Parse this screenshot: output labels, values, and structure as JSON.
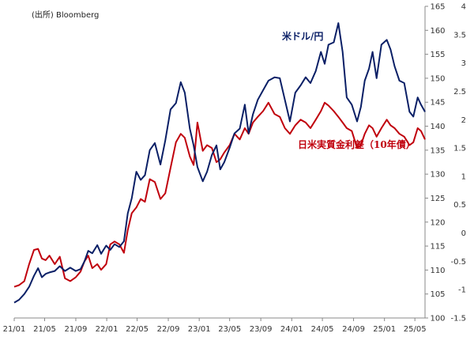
{
  "chart_data": {
    "type": "line",
    "source_note": "(出所) Bloomberg",
    "x_ticks": [
      "21/01",
      "21/05",
      "21/09",
      "22/01",
      "22/05",
      "22/09",
      "23/01",
      "23/05",
      "23/09",
      "24/01",
      "24/05",
      "24/09",
      "25/01",
      "25/05"
    ],
    "y_left": {
      "range": [
        100,
        165
      ],
      "ticks": [
        "100",
        "105",
        "110",
        "115",
        "120",
        "125",
        "130",
        "135",
        "140",
        "145",
        "150",
        "155",
        "160",
        "165"
      ]
    },
    "y_right": {
      "range": [
        -1.5,
        4
      ],
      "ticks": [
        "-1.5",
        "-1",
        "-0.5",
        "0",
        "0.5",
        "1",
        "1.5",
        "2",
        "2.5",
        "3",
        "3.5",
        "4"
      ]
    },
    "series": [
      {
        "name": "米ドル/円",
        "axis": "left",
        "color": "#0a1f66",
        "points": [
          [
            "2021-01-01",
            103.2
          ],
          [
            "2021-01-20",
            103.8
          ],
          [
            "2021-02-10",
            105.0
          ],
          [
            "2021-03-01",
            106.5
          ],
          [
            "2021-03-20",
            108.8
          ],
          [
            "2021-04-05",
            110.4
          ],
          [
            "2021-04-20",
            108.5
          ],
          [
            "2021-05-05",
            109.2
          ],
          [
            "2021-05-20",
            109.5
          ],
          [
            "2021-06-10",
            109.8
          ],
          [
            "2021-06-30",
            110.8
          ],
          [
            "2021-07-20",
            109.8
          ],
          [
            "2021-08-10",
            110.5
          ],
          [
            "2021-09-01",
            109.8
          ],
          [
            "2021-09-20",
            110.2
          ],
          [
            "2021-10-05",
            111.8
          ],
          [
            "2021-10-20",
            114.0
          ],
          [
            "2021-11-05",
            113.5
          ],
          [
            "2021-11-25",
            115.2
          ],
          [
            "2021-12-10",
            113.4
          ],
          [
            "2021-12-30",
            115.1
          ],
          [
            "2022-01-15",
            114.2
          ],
          [
            "2022-02-01",
            115.4
          ],
          [
            "2022-02-20",
            114.8
          ],
          [
            "2022-03-10",
            116.0
          ],
          [
            "2022-03-25",
            121.8
          ],
          [
            "2022-04-10",
            125.0
          ],
          [
            "2022-04-28",
            130.5
          ],
          [
            "2022-05-15",
            128.8
          ],
          [
            "2022-06-01",
            129.8
          ],
          [
            "2022-06-20",
            135.0
          ],
          [
            "2022-07-10",
            136.5
          ],
          [
            "2022-08-01",
            132.0
          ],
          [
            "2022-08-20",
            137.0
          ],
          [
            "2022-09-10",
            143.5
          ],
          [
            "2022-10-01",
            144.8
          ],
          [
            "2022-10-20",
            149.2
          ],
          [
            "2022-11-05",
            147.0
          ],
          [
            "2022-11-25",
            139.5
          ],
          [
            "2022-12-10",
            136.0
          ],
          [
            "2022-12-25",
            131.5
          ],
          [
            "2023-01-15",
            128.5
          ],
          [
            "2023-02-01",
            130.5
          ],
          [
            "2023-02-20",
            134.0
          ],
          [
            "2023-03-10",
            136.0
          ],
          [
            "2023-03-25",
            131.0
          ],
          [
            "2023-04-10",
            132.5
          ],
          [
            "2023-05-01",
            135.5
          ],
          [
            "2023-05-20",
            138.5
          ],
          [
            "2023-06-10",
            139.5
          ],
          [
            "2023-06-30",
            144.5
          ],
          [
            "2023-07-15",
            138.5
          ],
          [
            "2023-08-01",
            142.5
          ],
          [
            "2023-08-20",
            145.5
          ],
          [
            "2023-09-10",
            147.5
          ],
          [
            "2023-10-01",
            149.5
          ],
          [
            "2023-10-25",
            150.2
          ],
          [
            "2023-11-15",
            150.0
          ],
          [
            "2023-12-05",
            145.5
          ],
          [
            "2023-12-25",
            141.0
          ],
          [
            "2024-01-15",
            147.0
          ],
          [
            "2024-02-05",
            148.5
          ],
          [
            "2024-02-25",
            150.2
          ],
          [
            "2024-03-15",
            149.0
          ],
          [
            "2024-04-05",
            151.5
          ],
          [
            "2024-04-25",
            155.5
          ],
          [
            "2024-05-10",
            153.0
          ],
          [
            "2024-05-25",
            157.0
          ],
          [
            "2024-06-15",
            157.5
          ],
          [
            "2024-07-03",
            161.5
          ],
          [
            "2024-07-20",
            155.5
          ],
          [
            "2024-08-05",
            146.0
          ],
          [
            "2024-08-25",
            144.5
          ],
          [
            "2024-09-15",
            141.0
          ],
          [
            "2024-09-30",
            144.0
          ],
          [
            "2024-10-15",
            149.5
          ],
          [
            "2024-11-01",
            152.0
          ],
          [
            "2024-11-15",
            155.5
          ],
          [
            "2024-12-01",
            150.0
          ],
          [
            "2024-12-20",
            157.0
          ],
          [
            "2025-01-10",
            158.0
          ],
          [
            "2025-01-25",
            156.0
          ],
          [
            "2025-02-10",
            152.5
          ],
          [
            "2025-03-01",
            149.5
          ],
          [
            "2025-03-20",
            149.0
          ],
          [
            "2025-04-10",
            143.0
          ],
          [
            "2025-04-25",
            142.0
          ],
          [
            "2025-05-12",
            146.0
          ],
          [
            "2025-05-25",
            144.5
          ],
          [
            "2025-06-10",
            143.0
          ]
        ]
      },
      {
        "name": "日米実質金利差（10年債）",
        "axis": "right",
        "color": "#c0000c",
        "points": [
          [
            "2021-01-01",
            -0.95
          ],
          [
            "2021-01-20",
            -0.92
          ],
          [
            "2021-02-10",
            -0.85
          ],
          [
            "2021-03-01",
            -0.55
          ],
          [
            "2021-03-20",
            -0.3
          ],
          [
            "2021-04-05",
            -0.28
          ],
          [
            "2021-04-20",
            -0.45
          ],
          [
            "2021-05-05",
            -0.48
          ],
          [
            "2021-05-20",
            -0.4
          ],
          [
            "2021-06-10",
            -0.55
          ],
          [
            "2021-06-30",
            -0.42
          ],
          [
            "2021-07-20",
            -0.8
          ],
          [
            "2021-08-10",
            -0.85
          ],
          [
            "2021-09-01",
            -0.78
          ],
          [
            "2021-09-20",
            -0.68
          ],
          [
            "2021-10-05",
            -0.5
          ],
          [
            "2021-10-20",
            -0.4
          ],
          [
            "2021-11-05",
            -0.62
          ],
          [
            "2021-11-25",
            -0.55
          ],
          [
            "2021-12-10",
            -0.65
          ],
          [
            "2021-12-30",
            -0.55
          ],
          [
            "2022-01-15",
            -0.2
          ],
          [
            "2022-02-01",
            -0.15
          ],
          [
            "2022-02-20",
            -0.2
          ],
          [
            "2022-03-10",
            -0.35
          ],
          [
            "2022-03-25",
            0.05
          ],
          [
            "2022-04-10",
            0.35
          ],
          [
            "2022-04-28",
            0.45
          ],
          [
            "2022-05-15",
            0.6
          ],
          [
            "2022-06-01",
            0.55
          ],
          [
            "2022-06-20",
            0.95
          ],
          [
            "2022-07-10",
            0.9
          ],
          [
            "2022-08-01",
            0.6
          ],
          [
            "2022-08-20",
            0.7
          ],
          [
            "2022-09-10",
            1.15
          ],
          [
            "2022-10-01",
            1.6
          ],
          [
            "2022-10-20",
            1.75
          ],
          [
            "2022-11-05",
            1.68
          ],
          [
            "2022-11-25",
            1.35
          ],
          [
            "2022-12-10",
            1.2
          ],
          [
            "2022-12-25",
            1.95
          ],
          [
            "2023-01-15",
            1.45
          ],
          [
            "2023-02-01",
            1.55
          ],
          [
            "2023-02-20",
            1.5
          ],
          [
            "2023-03-10",
            1.25
          ],
          [
            "2023-03-25",
            1.3
          ],
          [
            "2023-04-10",
            1.42
          ],
          [
            "2023-05-01",
            1.55
          ],
          [
            "2023-05-20",
            1.75
          ],
          [
            "2023-06-10",
            1.65
          ],
          [
            "2023-06-30",
            1.85
          ],
          [
            "2023-07-15",
            1.75
          ],
          [
            "2023-08-01",
            1.95
          ],
          [
            "2023-08-20",
            2.05
          ],
          [
            "2023-09-10",
            2.15
          ],
          [
            "2023-10-01",
            2.3
          ],
          [
            "2023-10-25",
            2.1
          ],
          [
            "2023-11-15",
            2.05
          ],
          [
            "2023-12-05",
            1.85
          ],
          [
            "2023-12-25",
            1.75
          ],
          [
            "2024-01-15",
            1.9
          ],
          [
            "2024-02-05",
            2.0
          ],
          [
            "2024-02-25",
            1.95
          ],
          [
            "2024-03-15",
            1.85
          ],
          [
            "2024-04-05",
            2.0
          ],
          [
            "2024-04-25",
            2.15
          ],
          [
            "2024-05-10",
            2.3
          ],
          [
            "2024-05-25",
            2.25
          ],
          [
            "2024-06-15",
            2.15
          ],
          [
            "2024-07-03",
            2.05
          ],
          [
            "2024-07-20",
            1.95
          ],
          [
            "2024-08-05",
            1.85
          ],
          [
            "2024-08-25",
            1.8
          ],
          [
            "2024-09-15",
            1.5
          ],
          [
            "2024-09-30",
            1.55
          ],
          [
            "2024-10-15",
            1.75
          ],
          [
            "2024-11-01",
            1.9
          ],
          [
            "2024-11-15",
            1.85
          ],
          [
            "2024-12-01",
            1.7
          ],
          [
            "2024-12-20",
            1.85
          ],
          [
            "2025-01-10",
            2.0
          ],
          [
            "2025-01-25",
            1.9
          ],
          [
            "2025-02-10",
            1.85
          ],
          [
            "2025-03-01",
            1.75
          ],
          [
            "2025-03-20",
            1.7
          ],
          [
            "2025-04-10",
            1.55
          ],
          [
            "2025-04-25",
            1.6
          ],
          [
            "2025-05-12",
            1.85
          ],
          [
            "2025-05-25",
            1.8
          ],
          [
            "2025-06-10",
            1.65
          ]
        ]
      }
    ],
    "grid": false,
    "legend": "inline labels"
  }
}
